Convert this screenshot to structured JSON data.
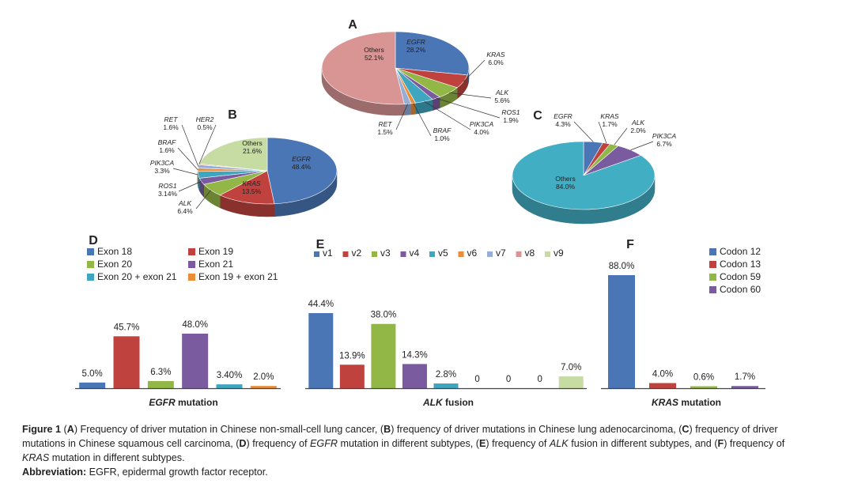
{
  "colors": {
    "blue": "#4a76b6",
    "red": "#c0423f",
    "green": "#93b747",
    "purple": "#7b5b9f",
    "teal": "#3fa6bf",
    "orange": "#e98d37",
    "lightblue": "#94aed5",
    "pink": "#d99594",
    "lightgreen": "#c6dca2",
    "cyan": "#41aec4",
    "text": "#222222"
  },
  "chart_data": [
    {
      "id": "A",
      "type": "pie",
      "panel_label": "A",
      "slices": [
        {
          "name": "EGFR",
          "value": 28.2,
          "label": "28.2%",
          "color": "blue"
        },
        {
          "name": "KRAS",
          "value": 6.0,
          "label": "6.0%",
          "color": "red"
        },
        {
          "name": "ALK",
          "value": 5.6,
          "label": "5.6%",
          "color": "green"
        },
        {
          "name": "ROS1",
          "value": 1.9,
          "label": "1.9%",
          "color": "purple"
        },
        {
          "name": "PIK3CA",
          "value": 4.0,
          "label": "4.0%",
          "color": "teal"
        },
        {
          "name": "BRAF",
          "value": 1.0,
          "label": "1.0%",
          "color": "orange"
        },
        {
          "name": "RET",
          "value": 1.5,
          "label": "1.5%",
          "color": "lightblue"
        },
        {
          "name": "Others",
          "value": 52.1,
          "label": "52.1%",
          "color": "pink"
        }
      ]
    },
    {
      "id": "B",
      "type": "pie",
      "panel_label": "B",
      "slices": [
        {
          "name": "EGFR",
          "value": 48.4,
          "label": "48.4%",
          "color": "blue"
        },
        {
          "name": "KRAS",
          "value": 13.5,
          "label": "13.5%",
          "color": "red"
        },
        {
          "name": "ALK",
          "value": 6.4,
          "label": "6.4%",
          "color": "green"
        },
        {
          "name": "ROS1",
          "value": 3.14,
          "label": "3.14%",
          "color": "purple"
        },
        {
          "name": "PIK3CA",
          "value": 3.3,
          "label": "3.3%",
          "color": "teal"
        },
        {
          "name": "BRAF",
          "value": 1.6,
          "label": "1.6%",
          "color": "orange"
        },
        {
          "name": "RET",
          "value": 1.6,
          "label": "1.6%",
          "color": "lightblue"
        },
        {
          "name": "HER2",
          "value": 0.5,
          "label": "0.5%",
          "color": "pink"
        },
        {
          "name": "Others",
          "value": 21.6,
          "label": "21.6%",
          "color": "lightgreen"
        }
      ]
    },
    {
      "id": "C",
      "type": "pie",
      "panel_label": "C",
      "slices": [
        {
          "name": "EGFR",
          "value": 4.3,
          "label": "4.3%",
          "color": "blue"
        },
        {
          "name": "KRAS",
          "value": 1.7,
          "label": "1.7%",
          "color": "red"
        },
        {
          "name": "ALK",
          "value": 2.0,
          "label": "2.0%",
          "color": "green"
        },
        {
          "name": "PIK3CA",
          "value": 6.7,
          "label": "6.7%",
          "color": "purple"
        },
        {
          "name": "Others",
          "value": 84.0,
          "label": "84.0%",
          "color": "cyan"
        }
      ]
    },
    {
      "id": "D",
      "type": "bar",
      "panel_label": "D",
      "xlabel_italic": "EGFR",
      "xlabel_rest": " mutation",
      "legend_columns": 2,
      "series": [
        {
          "name": "Exon 18",
          "value": 5.0,
          "label": "5.0%",
          "color": "blue"
        },
        {
          "name": "Exon 19",
          "value": 45.7,
          "label": "45.7%",
          "color": "red"
        },
        {
          "name": "Exon 20",
          "value": 6.3,
          "label": "6.3%",
          "color": "green"
        },
        {
          "name": "Exon 21",
          "value": 48.0,
          "label": "48.0%",
          "color": "purple"
        },
        {
          "name": "Exon 20 + exon 21",
          "value": 3.4,
          "label": "3.40%",
          "color": "teal"
        },
        {
          "name": "Exon 19 + exon 21",
          "value": 2.0,
          "label": "2.0%",
          "color": "orange"
        }
      ]
    },
    {
      "id": "E",
      "type": "bar",
      "panel_label": "E",
      "xlabel_italic": "ALK",
      "xlabel_rest": " fusion",
      "legend_columns": 9,
      "series": [
        {
          "name": "v1",
          "value": 44.4,
          "label": "44.4%",
          "color": "blue"
        },
        {
          "name": "v2",
          "value": 13.9,
          "label": "13.9%",
          "color": "red"
        },
        {
          "name": "v3",
          "value": 38.0,
          "label": "38.0%",
          "color": "green"
        },
        {
          "name": "v4",
          "value": 14.3,
          "label": "14.3%",
          "color": "purple"
        },
        {
          "name": "v5",
          "value": 2.8,
          "label": "2.8%",
          "color": "teal"
        },
        {
          "name": "v6",
          "value": 0,
          "label": "0",
          "color": "orange"
        },
        {
          "name": "v7",
          "value": 0,
          "label": "0",
          "color": "lightblue"
        },
        {
          "name": "v8",
          "value": 0,
          "label": "0",
          "color": "pink"
        },
        {
          "name": "v9",
          "value": 7.0,
          "label": "7.0%",
          "color": "lightgreen"
        }
      ]
    },
    {
      "id": "F",
      "type": "bar",
      "panel_label": "F",
      "xlabel_italic": "KRAS",
      "xlabel_rest": " mutation",
      "legend_columns": 1,
      "series": [
        {
          "name": "Codon 12",
          "value": 88.0,
          "label": "88.0%",
          "color": "blue"
        },
        {
          "name": "Codon 13",
          "value": 4.0,
          "label": "4.0%",
          "color": "red"
        },
        {
          "name": "Codon 59",
          "value": 0.6,
          "label": "0.6%",
          "color": "green"
        },
        {
          "name": "Codon 60",
          "value": 1.7,
          "label": "1.7%",
          "color": "purple"
        }
      ]
    }
  ],
  "caption": {
    "figure_label": "Figure 1",
    "line1": [
      {
        "t": " ("
      },
      {
        "t": "A",
        "b": true
      },
      {
        "t": ") Frequency of driver mutation in Chinese non-small-cell lung cancer, ("
      },
      {
        "t": "B",
        "b": true
      },
      {
        "t": ") frequency of driver mutations in Chinese lung adenocarcinoma, ("
      },
      {
        "t": "C",
        "b": true
      },
      {
        "t": ") frequency of driver"
      }
    ],
    "line2": [
      {
        "t": "mutations in Chinese squamous cell carcinoma, ("
      },
      {
        "t": "D",
        "b": true
      },
      {
        "t": ") frequency of "
      },
      {
        "t": "EGFR",
        "i": true
      },
      {
        "t": " mutation in different subtypes, ("
      },
      {
        "t": "E",
        "b": true
      },
      {
        "t": ") frequency of "
      },
      {
        "t": "ALK",
        "i": true
      },
      {
        "t": " fusion in different subtypes, and ("
      },
      {
        "t": "F",
        "b": true
      },
      {
        "t": ") frequency of"
      }
    ],
    "line3": [
      {
        "t": "KRAS",
        "i": true
      },
      {
        "t": " mutation in different subtypes."
      }
    ],
    "abbreviation_label": "Abbreviation:",
    "abbreviation_text": " EGFR, epidermal growth factor receptor."
  }
}
